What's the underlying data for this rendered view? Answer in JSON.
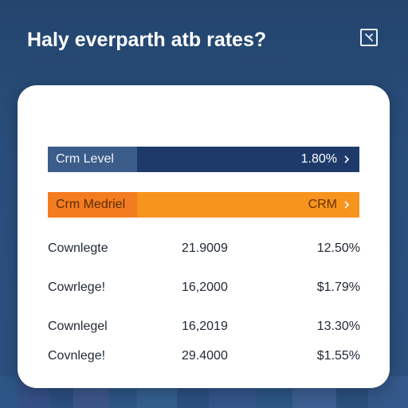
{
  "header": {
    "title": "Haly everparth atb rates?",
    "close_icon": "close-icon"
  },
  "bars": [
    {
      "label": "Crm Level",
      "value": "1.80%",
      "color": "#1e3a6b",
      "accent": "#3c5c8a"
    },
    {
      "label": "Crm Medriel",
      "value": "CRM",
      "color": "#f7941d",
      "accent": "#f47c20"
    }
  ],
  "rows": [
    {
      "name": "Cownlegte",
      "amount": "21.9009",
      "rate": "12.50%"
    },
    {
      "name": "Cowrlege!",
      "amount": "16,2000",
      "rate": "$1.79%"
    },
    {
      "name": "Cownlegel",
      "amount": "16,2019",
      "rate": "13.30%"
    },
    {
      "name": "Covnlege!",
      "amount": "29.4000",
      "rate": "$1.55%"
    }
  ],
  "colors": {
    "background": "#23456e",
    "card": "#ffffff",
    "navy": "#1e3a6b",
    "orange": "#f7941d"
  }
}
